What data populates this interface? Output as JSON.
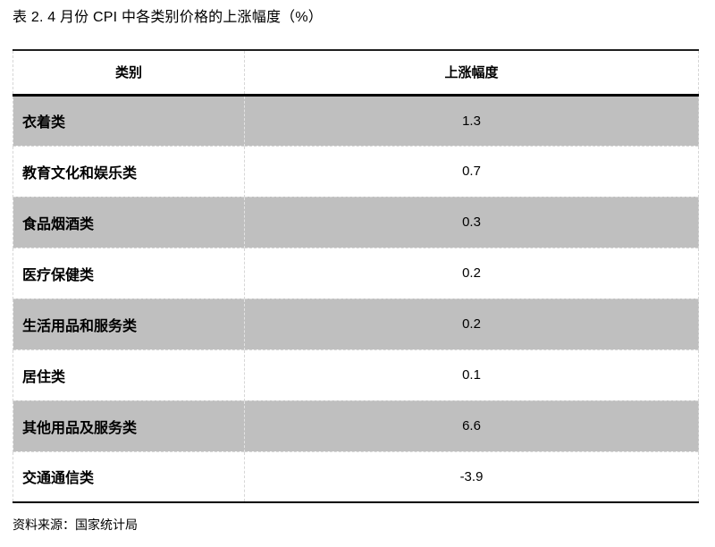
{
  "title": "表 2. 4 月份 CPI 中各类别价格的上涨幅度（%）",
  "table": {
    "headers": {
      "category": "类别",
      "value": "上涨幅度"
    },
    "rows": [
      {
        "category": "衣着类",
        "value": "1.3",
        "shaded": true
      },
      {
        "category": "教育文化和娱乐类",
        "value": "0.7",
        "shaded": false
      },
      {
        "category": "食品烟酒类",
        "value": "0.3",
        "shaded": true
      },
      {
        "category": "医疗保健类",
        "value": "0.2",
        "shaded": false
      },
      {
        "category": "生活用品和服务类",
        "value": "0.2",
        "shaded": true
      },
      {
        "category": "居住类",
        "value": "0.1",
        "shaded": false
      },
      {
        "category": "其他用品及服务类",
        "value": "6.6",
        "shaded": true
      },
      {
        "category": "交通通信类",
        "value": "-3.9",
        "shaded": false
      }
    ]
  },
  "source": "资料来源：国家统计局",
  "colors": {
    "row_shade": "#bfbfbf",
    "border": "#000000",
    "grid_dotted": "#d6d6d6"
  }
}
